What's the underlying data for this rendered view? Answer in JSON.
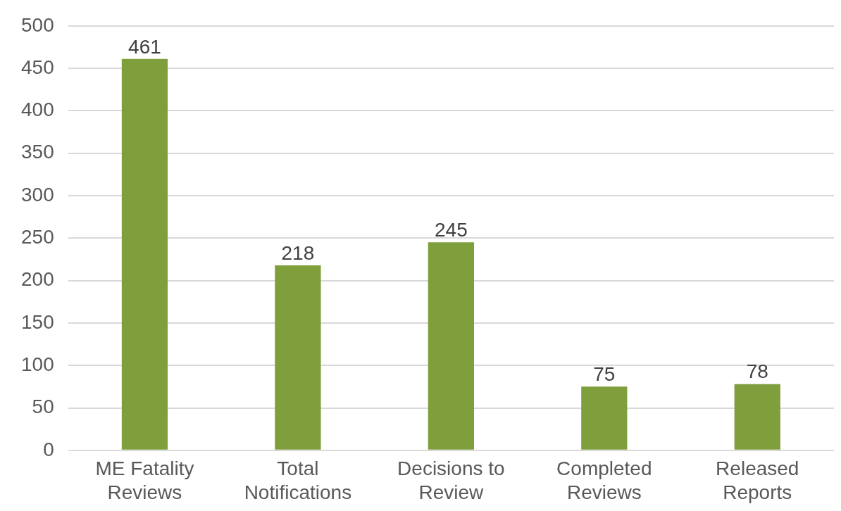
{
  "chart_data": {
    "type": "bar",
    "categories": [
      "ME Fatality Reviews",
      "Total Notifications",
      "Decisions to Review",
      "Completed Reviews",
      "Released Reports"
    ],
    "values": [
      461,
      218,
      245,
      75,
      78
    ],
    "color": "#7f9e3c",
    "ylim": [
      0,
      500
    ],
    "yticks": [
      0,
      50,
      100,
      150,
      200,
      250,
      300,
      350,
      400,
      450,
      500
    ],
    "grid": "y",
    "legend": false,
    "data_labels": true
  }
}
